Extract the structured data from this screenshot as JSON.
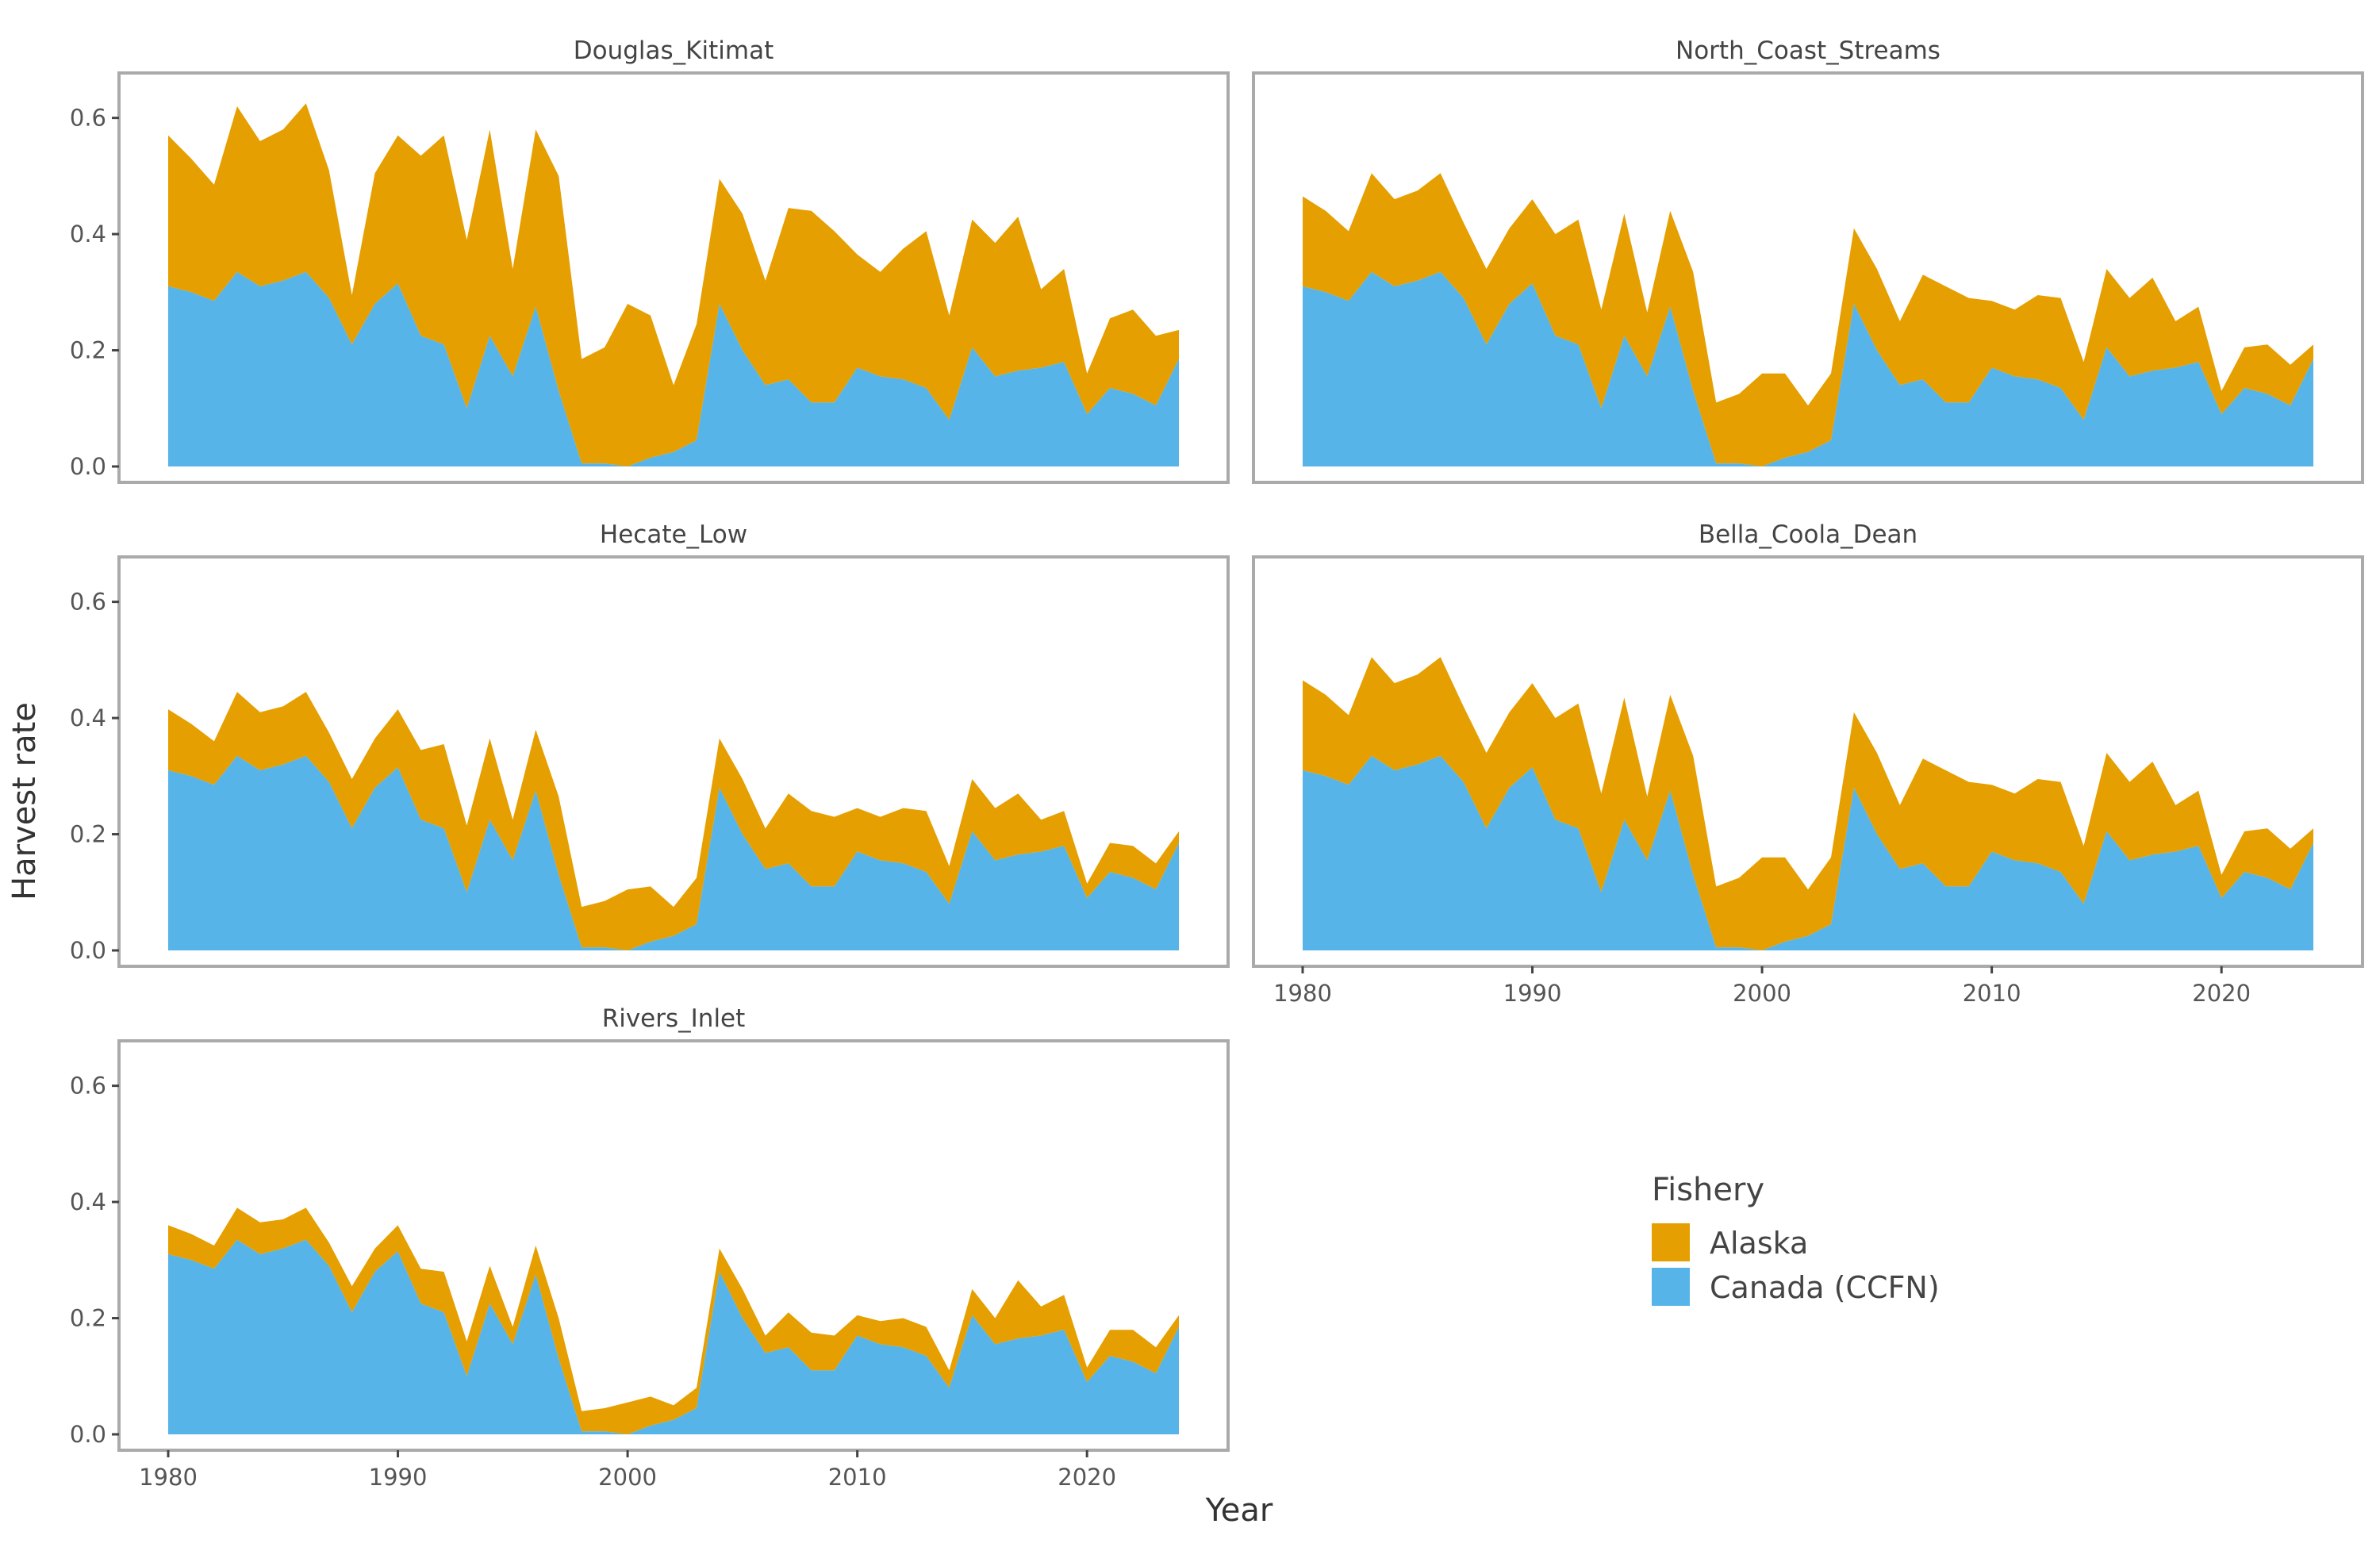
{
  "chart_data": {
    "type": "area",
    "stacked": true,
    "xlabel": "Year",
    "ylabel": "Harvest rate",
    "xlim": [
      1980,
      2024
    ],
    "ylim": [
      0,
      0.65
    ],
    "x_ticks": [
      1980,
      1990,
      2000,
      2010,
      2020
    ],
    "y_ticks": [
      "0.0",
      "0.2",
      "0.4",
      "0.6"
    ],
    "grid": false,
    "legend": {
      "title": "Fishery",
      "position": "bottom-right",
      "entries": [
        {
          "label": "Alaska",
          "color": "#E69F00"
        },
        {
          "label": "Canada (CCFN)",
          "color": "#56B4E9"
        }
      ]
    },
    "years": [
      1980,
      1981,
      1982,
      1983,
      1984,
      1985,
      1986,
      1987,
      1988,
      1989,
      1990,
      1991,
      1992,
      1993,
      1994,
      1995,
      1996,
      1997,
      1998,
      1999,
      2000,
      2001,
      2002,
      2003,
      2004,
      2005,
      2006,
      2007,
      2008,
      2009,
      2010,
      2011,
      2012,
      2013,
      2014,
      2015,
      2016,
      2017,
      2018,
      2019,
      2020,
      2021,
      2022,
      2023,
      2024
    ],
    "canada_ccfn": [
      0.31,
      0.3,
      0.285,
      0.335,
      0.31,
      0.32,
      0.335,
      0.29,
      0.21,
      0.28,
      0.315,
      0.225,
      0.21,
      0.1,
      0.225,
      0.155,
      0.275,
      0.13,
      0.005,
      0.005,
      0.0,
      0.015,
      0.025,
      0.045,
      0.28,
      0.2,
      0.14,
      0.15,
      0.11,
      0.11,
      0.17,
      0.155,
      0.15,
      0.135,
      0.08,
      0.205,
      0.155,
      0.165,
      0.17,
      0.18,
      0.09,
      0.135,
      0.125,
      0.105,
      0.185
    ],
    "panels": [
      {
        "name": "Douglas_Kitimat",
        "total": [
          0.57,
          0.53,
          0.485,
          0.62,
          0.56,
          0.58,
          0.625,
          0.51,
          0.295,
          0.505,
          0.57,
          0.535,
          0.57,
          0.39,
          0.58,
          0.34,
          0.58,
          0.5,
          0.185,
          0.205,
          0.28,
          0.26,
          0.14,
          0.245,
          0.495,
          0.435,
          0.32,
          0.445,
          0.44,
          0.405,
          0.365,
          0.335,
          0.375,
          0.405,
          0.26,
          0.425,
          0.385,
          0.43,
          0.305,
          0.34,
          0.16,
          0.255,
          0.27,
          0.225,
          0.235
        ]
      },
      {
        "name": "North_Coast_Streams",
        "total": [
          0.465,
          0.44,
          0.405,
          0.505,
          0.46,
          0.475,
          0.505,
          0.42,
          0.34,
          0.41,
          0.46,
          0.4,
          0.425,
          0.27,
          0.435,
          0.265,
          0.44,
          0.335,
          0.11,
          0.125,
          0.16,
          0.16,
          0.105,
          0.16,
          0.41,
          0.34,
          0.25,
          0.33,
          0.31,
          0.29,
          0.285,
          0.27,
          0.295,
          0.29,
          0.18,
          0.34,
          0.29,
          0.325,
          0.25,
          0.275,
          0.13,
          0.205,
          0.21,
          0.175,
          0.21
        ]
      },
      {
        "name": "Hecate_Low",
        "total": [
          0.415,
          0.39,
          0.36,
          0.445,
          0.41,
          0.42,
          0.445,
          0.375,
          0.295,
          0.365,
          0.415,
          0.345,
          0.355,
          0.215,
          0.365,
          0.225,
          0.38,
          0.265,
          0.075,
          0.085,
          0.105,
          0.11,
          0.075,
          0.125,
          0.365,
          0.295,
          0.21,
          0.27,
          0.24,
          0.23,
          0.245,
          0.23,
          0.245,
          0.24,
          0.145,
          0.295,
          0.245,
          0.27,
          0.225,
          0.24,
          0.115,
          0.185,
          0.18,
          0.15,
          0.205
        ]
      },
      {
        "name": "Bella_Coola_Dean",
        "total": [
          0.465,
          0.44,
          0.405,
          0.505,
          0.46,
          0.475,
          0.505,
          0.42,
          0.34,
          0.41,
          0.46,
          0.4,
          0.425,
          0.27,
          0.435,
          0.265,
          0.44,
          0.335,
          0.11,
          0.125,
          0.16,
          0.16,
          0.105,
          0.16,
          0.41,
          0.34,
          0.25,
          0.33,
          0.31,
          0.29,
          0.285,
          0.27,
          0.295,
          0.29,
          0.18,
          0.34,
          0.29,
          0.325,
          0.25,
          0.275,
          0.13,
          0.205,
          0.21,
          0.175,
          0.21
        ]
      },
      {
        "name": "Rivers_Inlet",
        "total": [
          0.36,
          0.345,
          0.325,
          0.39,
          0.365,
          0.37,
          0.39,
          0.33,
          0.255,
          0.32,
          0.36,
          0.285,
          0.28,
          0.16,
          0.29,
          0.185,
          0.325,
          0.2,
          0.04,
          0.045,
          0.055,
          0.065,
          0.05,
          0.08,
          0.32,
          0.25,
          0.17,
          0.21,
          0.175,
          0.17,
          0.205,
          0.195,
          0.2,
          0.185,
          0.11,
          0.25,
          0.2,
          0.265,
          0.22,
          0.24,
          0.115,
          0.18,
          0.18,
          0.15,
          0.205
        ]
      }
    ]
  }
}
